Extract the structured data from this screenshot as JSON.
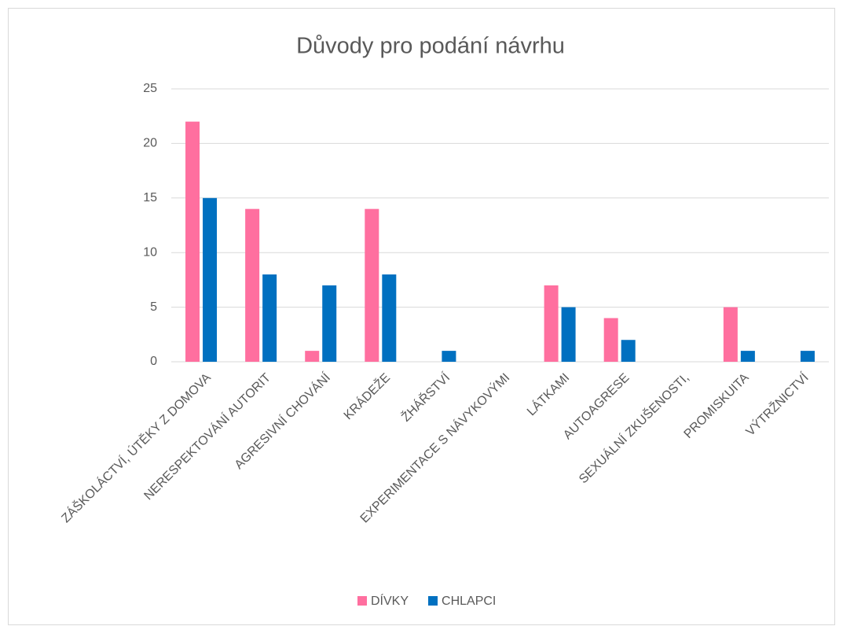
{
  "chart_data": {
    "type": "bar",
    "title": "Důvody pro podání návrhu",
    "categories": [
      "ZÁŠKOLÁCTVÍ, ÚTĚKY Z DOMOVA",
      "NERESPEKTOVÁNÍ AUTORIT",
      "AGRESIVNÍ CHOVÁNÍ",
      "KRÁDEŽE",
      "ŽHÁŘSTVÍ",
      "EXPERIMENTACE S NÁVYKOVÝMI",
      "LÁTKAMI",
      "AUTOAGRESE",
      "SEXUÁLNÍ ZKUŠENOSTI,",
      "PROMISKUITA",
      "VÝTRŽNICTVÍ"
    ],
    "series": [
      {
        "name": "DÍVKY",
        "color": "#ff6f9f",
        "values": [
          22,
          14,
          1,
          14,
          0,
          0,
          7,
          4,
          0,
          5,
          0
        ]
      },
      {
        "name": "CHLAPCI",
        "color": "#0070c0",
        "values": [
          15,
          8,
          7,
          8,
          1,
          0,
          5,
          2,
          0,
          1,
          1
        ]
      }
    ],
    "ylim": [
      0,
      25
    ],
    "yticks": [
      0,
      5,
      10,
      15,
      20,
      25
    ],
    "grid": true,
    "legend": "bottom"
  }
}
